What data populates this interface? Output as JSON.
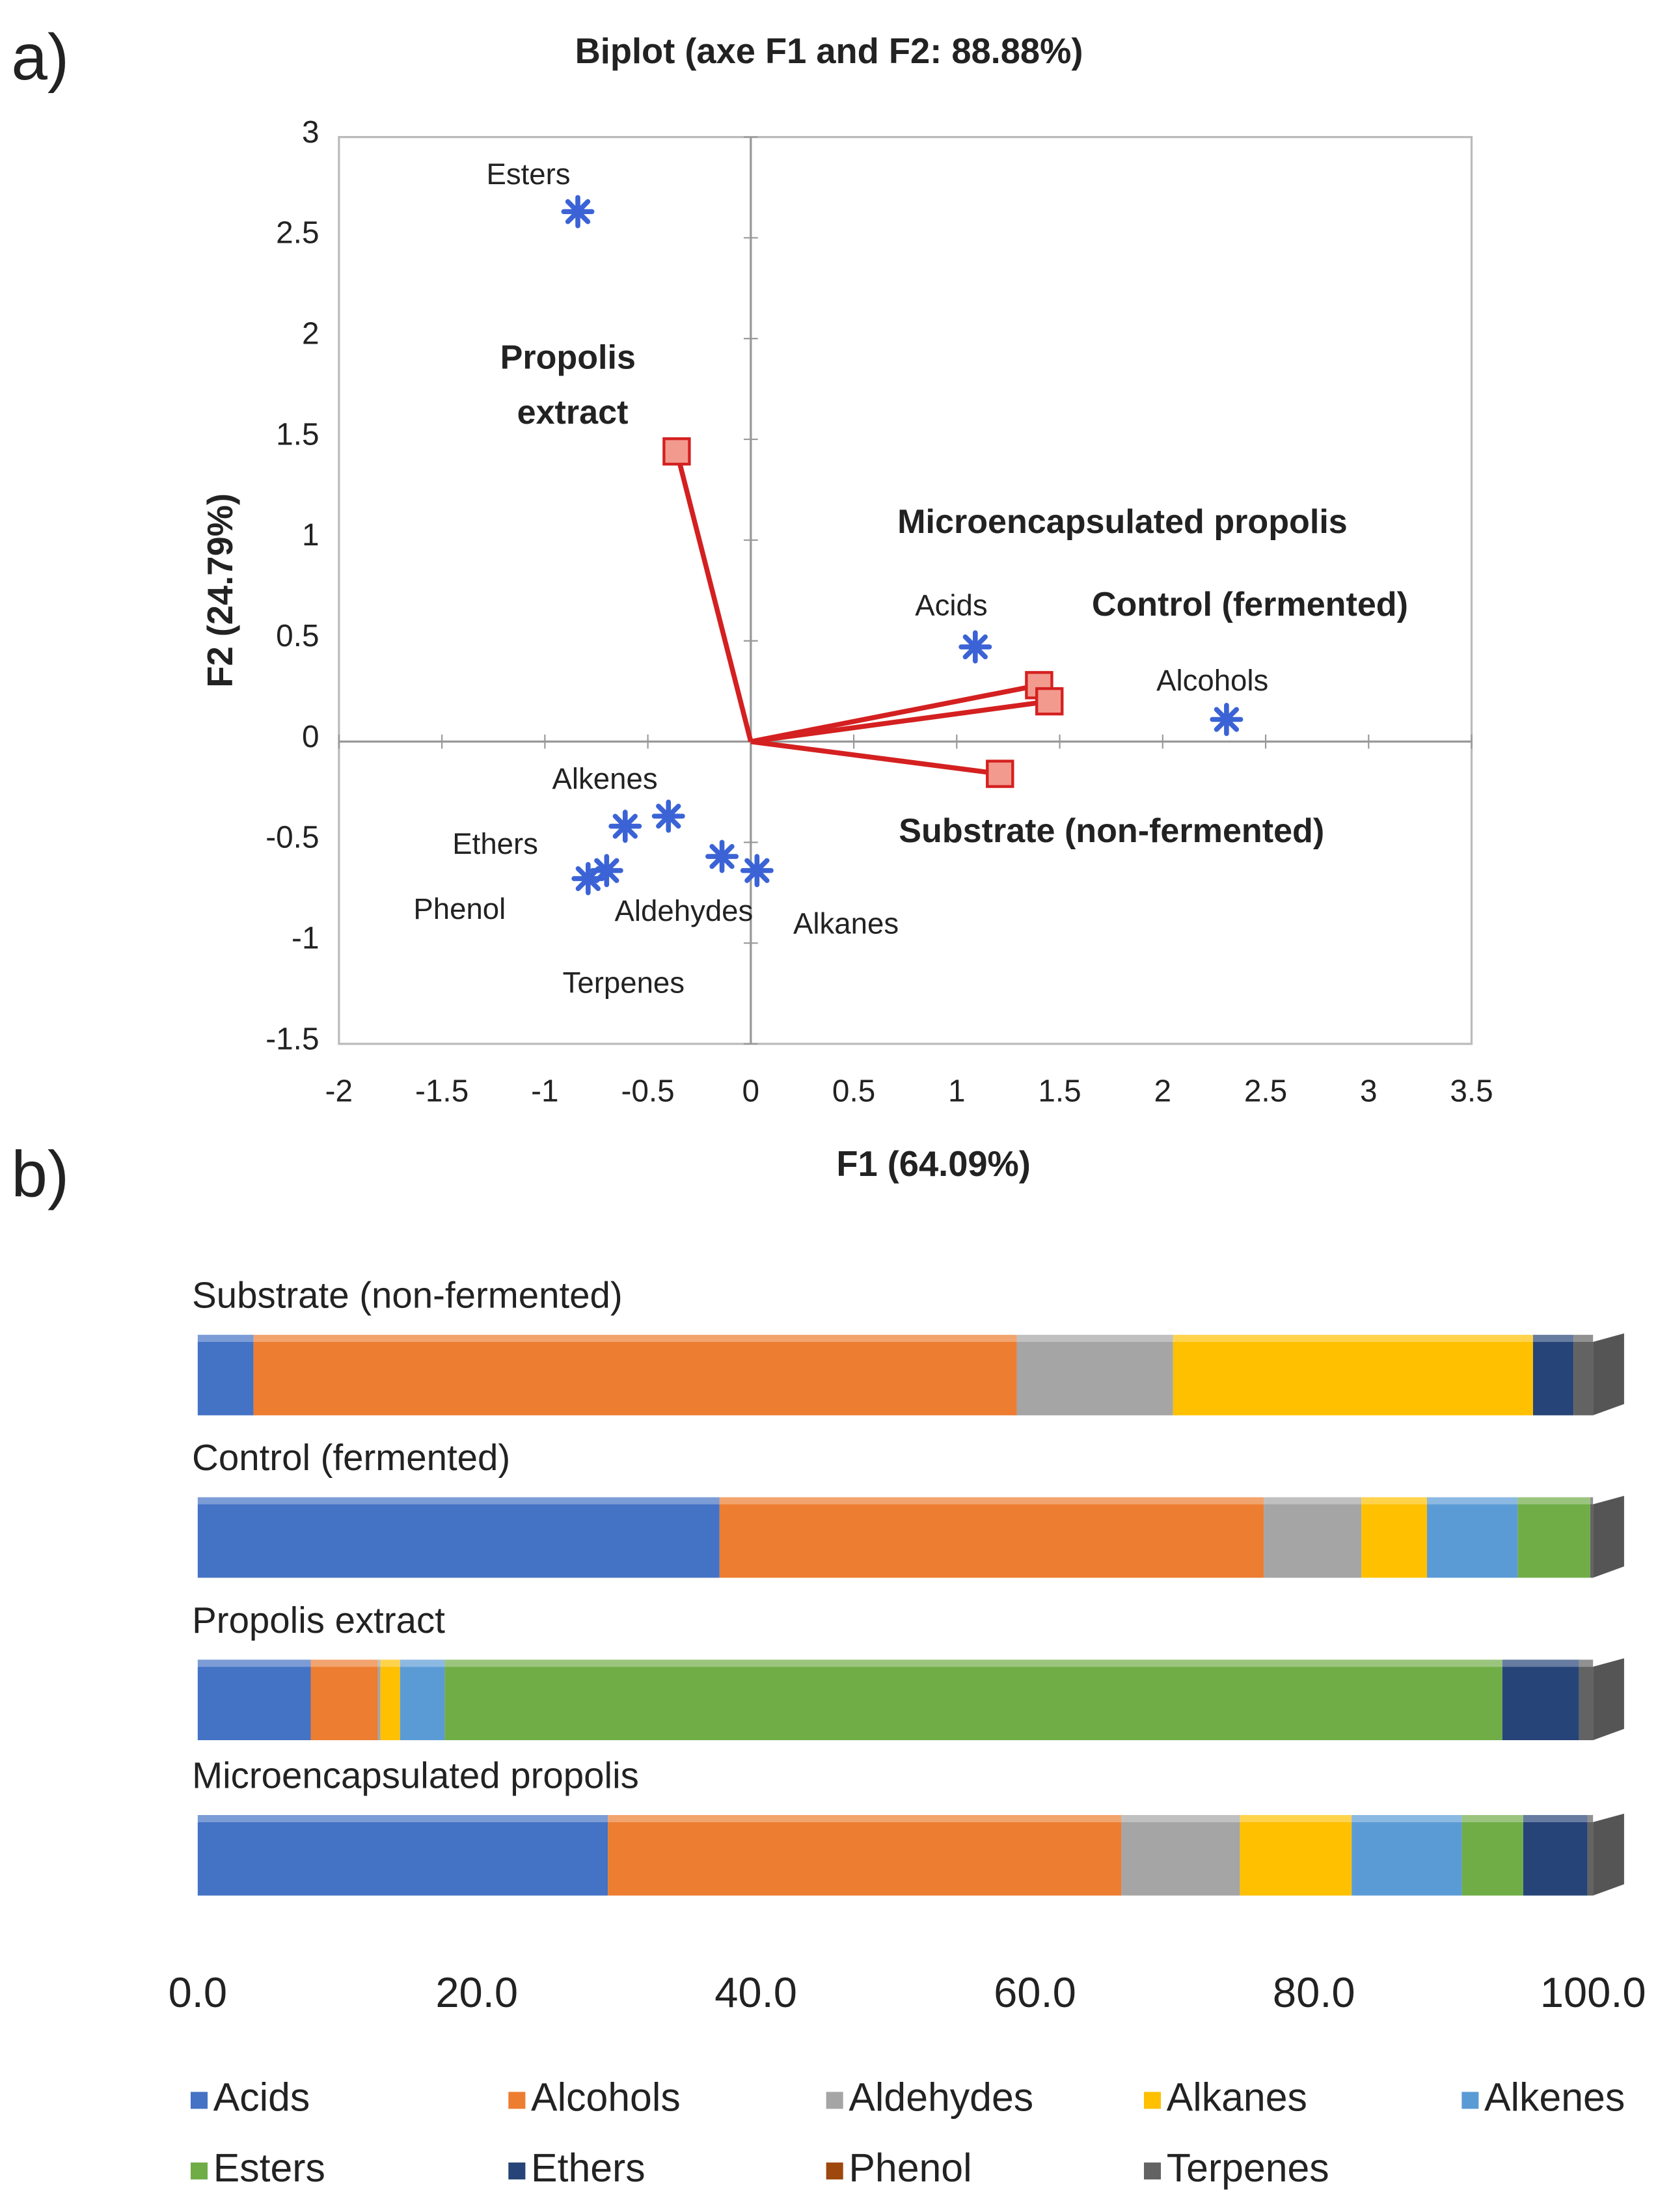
{
  "chart_data": [
    {
      "type": "scatter",
      "panel": "a)",
      "title": "Biplot (axe F1 and F2: 88.88%)",
      "xlabel": "F1 (64.09%)",
      "ylabel": "F2 (24.79%)",
      "xlim": [
        -2,
        3.5
      ],
      "xticks": [
        -2,
        -1.5,
        -1,
        -0.5,
        0,
        0.5,
        1,
        1.5,
        2,
        2.5,
        3,
        3.5
      ],
      "ylim": [
        -1.5,
        3
      ],
      "yticks": [
        -1.5,
        -1,
        -0.5,
        0,
        0.5,
        1,
        1.5,
        2,
        2.5,
        3
      ],
      "series": [
        {
          "marker": "star",
          "color": "#3b63d6",
          "labels": [
            "Esters",
            "Acids",
            "Alcohols",
            "Alkenes",
            "Ethers",
            "Phenol",
            "Aldehydes",
            "Alkanes",
            "Terpenes"
          ],
          "x": [
            -0.84,
            1.09,
            2.31,
            -0.4,
            -0.61,
            -0.79,
            -0.14,
            0.03,
            -0.7
          ],
          "values": [
            2.63,
            0.47,
            0.11,
            -0.37,
            -0.42,
            -0.68,
            -0.57,
            -0.64,
            -0.64
          ]
        },
        {
          "marker": "square",
          "vectors": true,
          "color": "#d42020",
          "labels": [
            "Propolis extract",
            "Microencapsulated propolis",
            "Control (fermented)",
            "Substrate (non-fermented)"
          ],
          "x": [
            -0.36,
            1.4,
            1.45,
            1.21
          ],
          "values": [
            1.44,
            0.28,
            0.2,
            -0.16
          ]
        }
      ]
    },
    {
      "type": "bar",
      "panel": "b)",
      "orientation": "horizontal",
      "stacked": true,
      "categories": [
        "Substrate (non-fermented)",
        "Control (fermented)",
        "Propolis extract",
        "Microencapsulated propolis"
      ],
      "xlim": [
        0,
        100
      ],
      "xticks": [
        {
          "value": 0,
          "label": "0.0"
        },
        {
          "value": 20,
          "label": "20.0"
        },
        {
          "value": 40,
          "label": "40.0"
        },
        {
          "value": 60,
          "label": "60.0"
        },
        {
          "value": 80,
          "label": "80.0"
        },
        {
          "value": 100,
          "label": "100.0"
        }
      ],
      "legend": "bottom",
      "series": [
        {
          "name": "Acids",
          "color": "#4472c4",
          "values": [
            4.0,
            37.4,
            8.1,
            29.4
          ]
        },
        {
          "name": "Alcohols",
          "color": "#ed7d31",
          "values": [
            54.7,
            39.0,
            4.8,
            36.8
          ]
        },
        {
          "name": "Aldehydes",
          "color": "#a5a5a5",
          "values": [
            11.2,
            7.0,
            0.2,
            8.5
          ]
        },
        {
          "name": "Alkanes",
          "color": "#ffc000",
          "values": [
            25.8,
            4.7,
            1.4,
            8.0
          ]
        },
        {
          "name": "Alkenes",
          "color": "#5b9bd5",
          "values": [
            0,
            6.5,
            3.2,
            7.9
          ]
        },
        {
          "name": "Esters",
          "color": "#70ad47",
          "values": [
            0,
            5.2,
            75.8,
            4.4
          ]
        },
        {
          "name": "Ethers",
          "color": "#264478",
          "values": [
            2.9,
            0,
            5.5,
            4.6
          ]
        },
        {
          "name": "Phenol",
          "color": "#9e480e",
          "values": [
            0,
            0,
            0,
            0
          ]
        },
        {
          "name": "Terpenes",
          "color": "#636363",
          "values": [
            1.4,
            0.2,
            1.0,
            0.4
          ]
        }
      ]
    }
  ]
}
